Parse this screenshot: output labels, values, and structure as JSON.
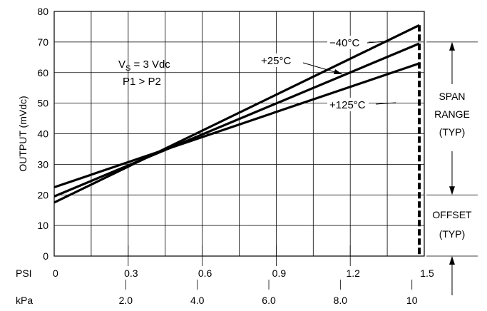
{
  "chart_data": {
    "type": "line",
    "ylabel": "OUTPUT (mVdc)",
    "xlabel_psi": "PSI",
    "xlabel_kpa": "kPa",
    "ylim": [
      0,
      80
    ],
    "xlim": [
      0,
      1.5
    ],
    "y_ticks": [
      "0",
      "10",
      "20",
      "30",
      "40",
      "50",
      "60",
      "70",
      "80"
    ],
    "psi_ticks": [
      {
        "value": 0,
        "label": "0"
      },
      {
        "value": 0.3,
        "label": "0.3"
      },
      {
        "value": 0.6,
        "label": "0.6"
      },
      {
        "value": 0.9,
        "label": "0.9"
      },
      {
        "value": 1.2,
        "label": "1.2"
      },
      {
        "value": 1.5,
        "label": "1.5"
      }
    ],
    "kpa_ticks": [
      {
        "value": 2.0,
        "label": "2.0"
      },
      {
        "value": 4.0,
        "label": "4.0"
      },
      {
        "value": 6.0,
        "label": "6.0"
      },
      {
        "value": 8.0,
        "label": "8.0"
      },
      {
        "value": 10,
        "label": "10"
      }
    ],
    "kpa_full_scale": 10,
    "series": [
      {
        "name": "−40°C",
        "x": [
          0,
          1.48
        ],
        "y": [
          17.5,
          75.5
        ]
      },
      {
        "name": "+25°C",
        "x": [
          0,
          1.48
        ],
        "y": [
          19.5,
          69.5
        ]
      },
      {
        "name": "+125°C",
        "x": [
          0,
          1.48
        ],
        "y": [
          22.5,
          63
        ]
      }
    ],
    "annotation_lines": [
      "V",
      "S",
      " = 3 Vdc",
      "P1 > P2"
    ],
    "span_label": [
      "SPAN",
      "RANGE",
      "(TYP)"
    ],
    "offset_label": [
      "OFFSET",
      "(TYP)"
    ],
    "span_top_value": 70,
    "span_bottom_value": 20,
    "grid": true
  }
}
